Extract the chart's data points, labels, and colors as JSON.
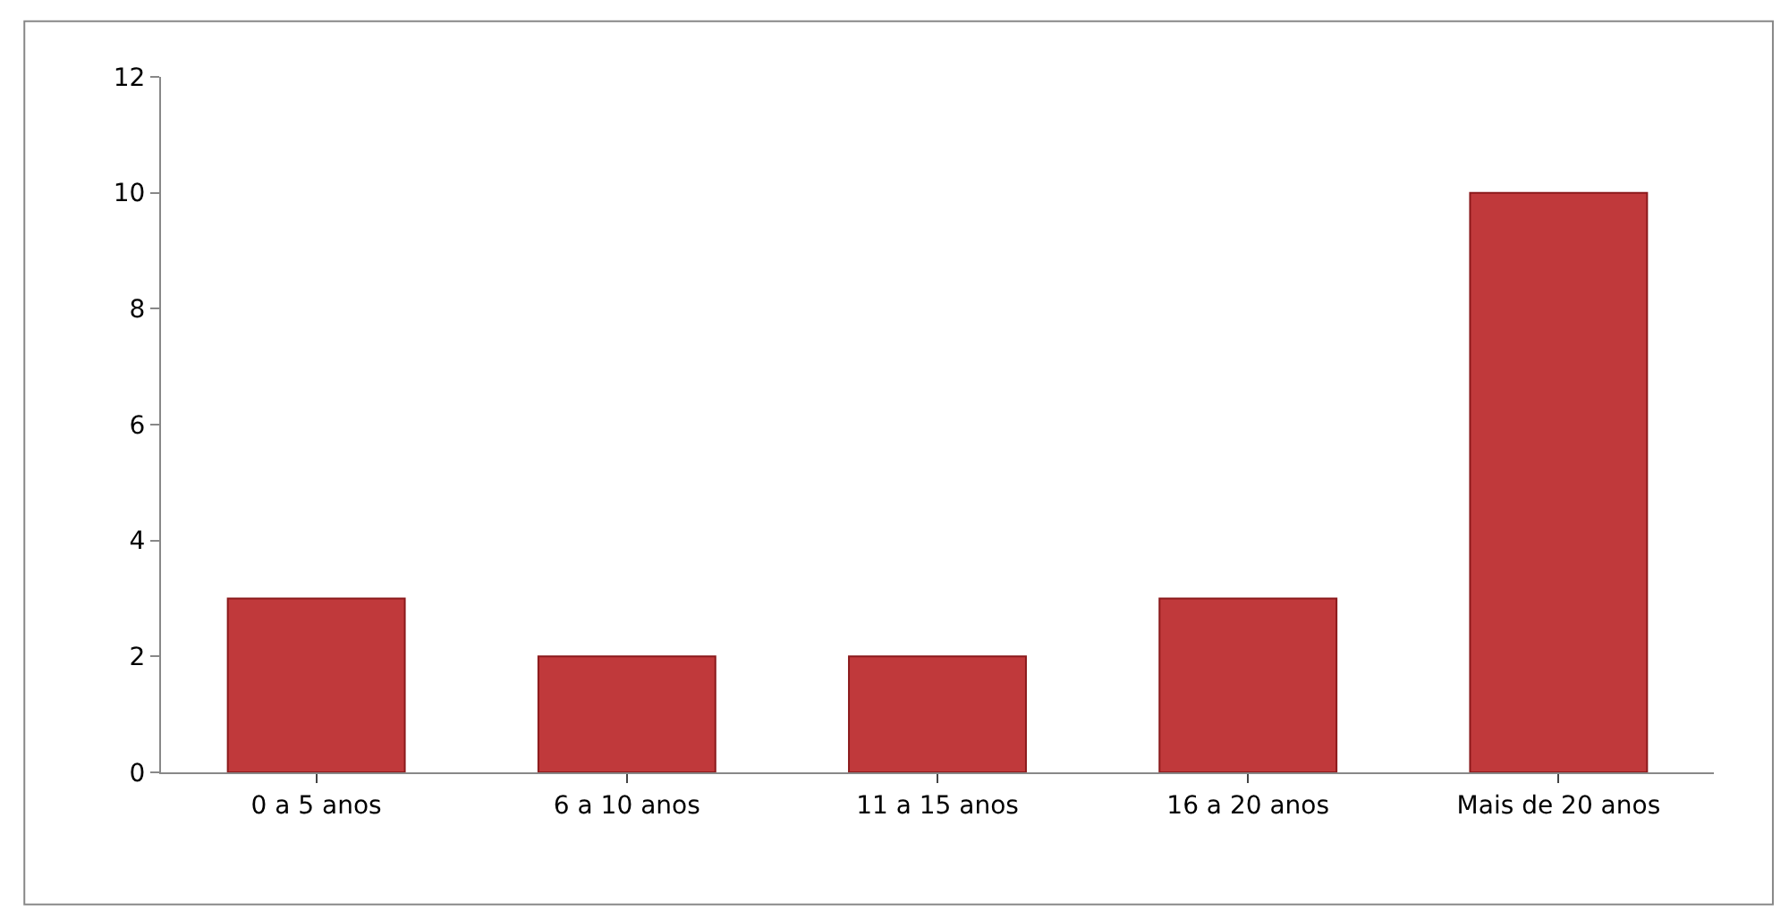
{
  "chart_data": {
    "type": "bar",
    "categories": [
      "0 a 5 anos",
      "6 a 10 anos",
      "11 a 15 anos",
      "16 a 20 anos",
      "Mais de 20 anos"
    ],
    "values": [
      3,
      2,
      2,
      3,
      10
    ],
    "color": "#c0393b",
    "ylim": [
      0,
      12
    ],
    "yticks": [
      0,
      2,
      4,
      6,
      8,
      10,
      12
    ]
  }
}
